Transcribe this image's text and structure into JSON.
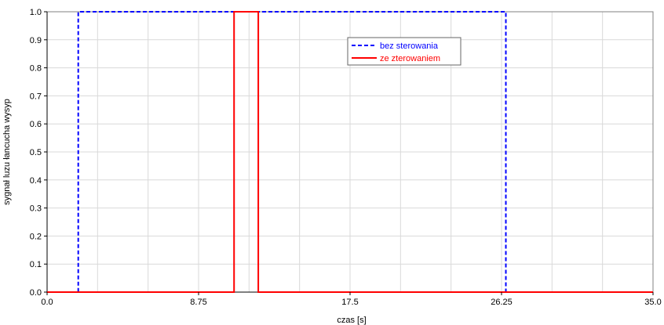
{
  "chart_data": {
    "type": "line",
    "title": "",
    "xlabel": "czas [s]",
    "ylabel": "sygnał luzu łancucha wysyp",
    "xlim": [
      0,
      35
    ],
    "ylim": [
      0,
      1
    ],
    "grid": true,
    "x_ticks": [
      0,
      8.75,
      17.5,
      26.25,
      35
    ],
    "x_tick_labels": [
      "0.0",
      "8.75",
      "17.5",
      "26.25",
      "35.0"
    ],
    "y_ticks": [
      0,
      0.1,
      0.2,
      0.3,
      0.4,
      0.5,
      0.6,
      0.7,
      0.8,
      0.9,
      1.0
    ],
    "y_tick_labels": [
      "0.0",
      "0.1",
      "0.2",
      "0.3",
      "0.4",
      "0.5",
      "0.6",
      "0.7",
      "0.8",
      "0.9",
      "1.0"
    ],
    "legend_position": "top-right",
    "series": [
      {
        "name": "bez sterowania",
        "color": "#0000ff",
        "style": "dashed",
        "x": [
          0,
          1.8,
          1.8,
          26.5,
          26.5,
          35
        ],
        "y": [
          0,
          0,
          1,
          1,
          0,
          0
        ]
      },
      {
        "name": "ze zterowaniem",
        "color": "#ff0000",
        "style": "solid",
        "x": [
          0,
          10.8,
          10.8,
          12.2,
          12.2,
          35
        ],
        "y": [
          0,
          0,
          1,
          1,
          0,
          0
        ]
      }
    ]
  }
}
